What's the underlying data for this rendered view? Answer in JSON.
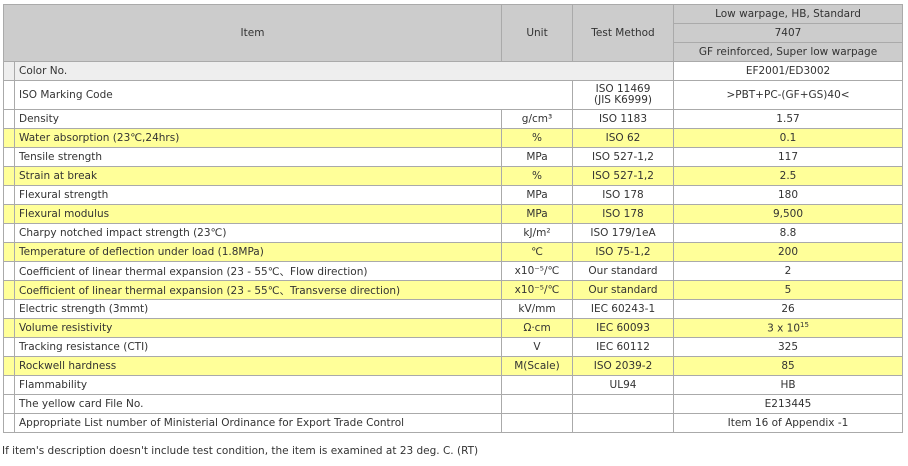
{
  "header": {
    "item": "Item",
    "unit": "Unit",
    "method": "Test Method",
    "grade_desc": "Low warpage, HB, Standard",
    "grade": "7407",
    "grade_sub": "GF reinforced, Super low warpage"
  },
  "color_row": {
    "label": "Color No.",
    "value": "EF2001/ED3002"
  },
  "iso_row": {
    "label": "ISO Marking Code",
    "method1": "ISO 11469",
    "method2": "(JIS K6999)",
    "value": ">PBT+PC-(GF+GS)40<"
  },
  "rows": [
    {
      "item": "Density",
      "unit": "g/cm³",
      "method": "ISO 1183",
      "value": "1.57",
      "highlight": false
    },
    {
      "item": "Water absorption (23℃,24hrs)",
      "unit": "%",
      "method": "ISO 62",
      "value": "0.1",
      "highlight": true
    },
    {
      "item": "Tensile strength",
      "unit": "MPa",
      "method": "ISO 527-1,2",
      "value": "117",
      "highlight": false
    },
    {
      "item": "Strain at break",
      "unit": "%",
      "method": "ISO 527-1,2",
      "value": "2.5",
      "highlight": true
    },
    {
      "item": "Flexural strength",
      "unit": "MPa",
      "method": "ISO 178",
      "value": "180",
      "highlight": false
    },
    {
      "item": "Flexural modulus",
      "unit": "MPa",
      "method": "ISO 178",
      "value": "9,500",
      "highlight": true
    },
    {
      "item": "Charpy notched impact strength (23℃)",
      "unit": "kJ/m²",
      "method": "ISO 179/1eA",
      "value": "8.8",
      "highlight": false
    },
    {
      "item": "Temperature of deflection under load (1.8MPa)",
      "unit": "℃",
      "method": "ISO 75-1,2",
      "value": "200",
      "highlight": true
    },
    {
      "item": "Coefficient of linear thermal expansion (23 - 55℃、Flow direction)",
      "unit": "x10⁻⁵/℃",
      "method": "Our standard",
      "value": "2",
      "highlight": false
    },
    {
      "item": "Coefficient of linear thermal expansion (23 - 55℃、Transverse direction)",
      "unit": "x10⁻⁵/℃",
      "method": "Our standard",
      "value": "5",
      "highlight": true
    },
    {
      "item": "Electric strength (3mmt)",
      "unit": "kV/mm",
      "method": "IEC 60243-1",
      "value": "26",
      "highlight": false
    },
    {
      "item": "Volume resistivity",
      "unit": "Ω·cm",
      "method": "IEC 60093",
      "value": "3 x 10",
      "sup": "15",
      "highlight": true
    },
    {
      "item": "Tracking resistance (CTI)",
      "unit": "V",
      "method": "IEC 60112",
      "value": "325",
      "highlight": false
    },
    {
      "item": "Rockwell hardness",
      "unit": "M(Scale)",
      "method": "ISO 2039-2",
      "value": "85",
      "highlight": true
    },
    {
      "item": "Flammability",
      "unit": "",
      "method": "UL94",
      "value": "HB",
      "highlight": false
    },
    {
      "item": "The yellow card File No.",
      "unit": "",
      "method": "",
      "value": "E213445",
      "highlight": false
    },
    {
      "item": "Appropriate List number of Ministerial Ordinance for Export Trade Control",
      "unit": "",
      "method": "",
      "value": "Item 16 of Appendix -1",
      "highlight": false
    }
  ],
  "footnote": "If item's description doesn't include test condition, the item is examined at 23 deg. C. (RT)",
  "colors": {
    "highlight": "#ffff99",
    "header": "#cccccc"
  }
}
